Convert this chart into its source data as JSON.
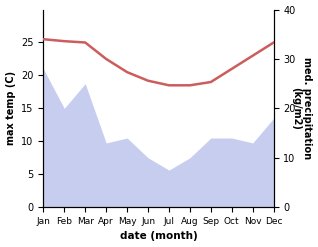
{
  "months": [
    "Jan",
    "Feb",
    "Mar",
    "Apr",
    "May",
    "Jun",
    "Jul",
    "Aug",
    "Sep",
    "Oct",
    "Nov",
    "Dec"
  ],
  "month_x": [
    0,
    1,
    2,
    3,
    4,
    5,
    6,
    7,
    8,
    9,
    10,
    11
  ],
  "temperature": [
    25.5,
    25.2,
    25.0,
    22.5,
    20.5,
    19.2,
    18.5,
    18.5,
    19.0,
    21.0,
    23.0,
    25.0
  ],
  "precipitation": [
    28,
    20,
    25,
    13,
    14,
    10,
    7.5,
    10,
    14,
    14,
    13,
    18
  ],
  "temp_color": "#cd5c5c",
  "precip_color": "#b0b8e8",
  "ylabel_left": "max temp (C)",
  "ylabel_right": "med. precipitation\n(kg/m2)",
  "xlabel": "date (month)",
  "ylim_left": [
    0,
    30
  ],
  "ylim_right": [
    0,
    40
  ],
  "yticks_left": [
    0,
    5,
    10,
    15,
    20,
    25
  ],
  "yticks_right": [
    0,
    10,
    20,
    30,
    40
  ],
  "bg_color": "#ffffff",
  "fig_bg_color": "#ffffff"
}
